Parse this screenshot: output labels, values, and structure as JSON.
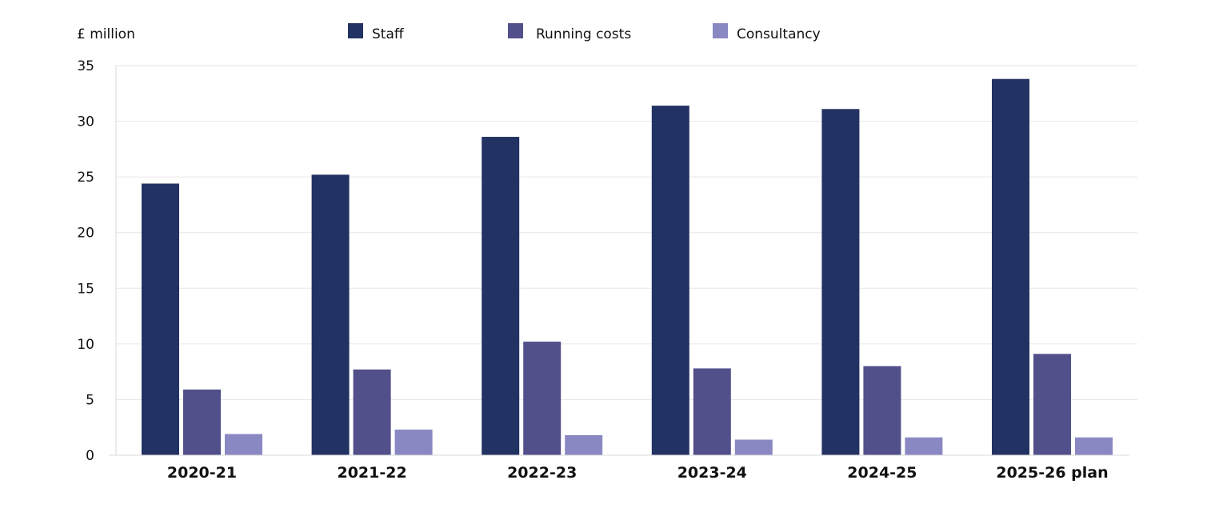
{
  "chart_data": {
    "type": "bar",
    "title": "",
    "ylabel": "£ million",
    "xlabel": "",
    "ylim": [
      0,
      35
    ],
    "yticks": [
      0,
      5,
      10,
      15,
      20,
      25,
      30,
      35
    ],
    "grid": true,
    "legend_position": "top-center",
    "categories": [
      "2020-21",
      "2021-22",
      "2022-23",
      "2023-24",
      "2024-25",
      "2025-26 plan"
    ],
    "series": [
      {
        "name": "Staff",
        "color": "#223263",
        "values": [
          24.4,
          25.2,
          28.6,
          31.4,
          31.1,
          33.8
        ]
      },
      {
        "name": "Running costs",
        "color": "#51508a",
        "values": [
          5.9,
          7.7,
          10.2,
          7.8,
          8.0,
          9.1
        ]
      },
      {
        "name": "Consultancy",
        "color": "#8a88c3",
        "values": [
          1.9,
          2.3,
          1.8,
          1.4,
          1.6,
          1.6
        ]
      }
    ]
  }
}
